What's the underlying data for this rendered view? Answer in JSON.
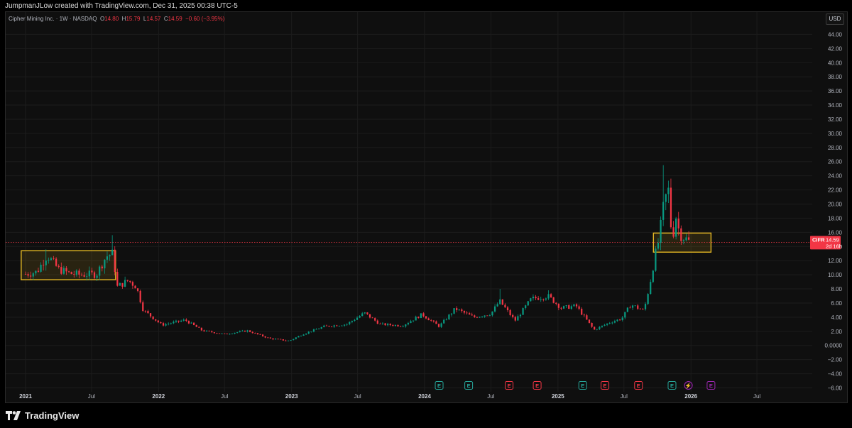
{
  "header": {
    "attribution": "JumpmanJLow created with TradingView.com, Dec 31, 2025 00:38 UTC-5"
  },
  "legend": {
    "symbol_desc": "Cipher Mining Inc. · 1W · NASDAQ",
    "o_label": "O",
    "o_value": "14.80",
    "h_label": "H",
    "h_value": "15.79",
    "l_label": "L",
    "l_value": "14.57",
    "c_label": "C",
    "c_value": "14.59",
    "change": "−0.60 (−3.95%)"
  },
  "currency": "USD",
  "price_tag": {
    "ticker": "CIFR",
    "price": "14.59",
    "countdown": "2d 16h"
  },
  "footer": {
    "brand": "TradingView"
  },
  "colors": {
    "up": "#089981",
    "down": "#f23645",
    "box": "#e5b824",
    "background": "#0f0f0f",
    "earnings_green": "#26a69a",
    "earnings_red": "#f23645",
    "dividend_purple": "#9c27b0"
  },
  "chart_data": {
    "type": "candlestick",
    "ylim": [
      -6,
      46
    ],
    "yticks": [
      "44.00",
      "42.00",
      "40.00",
      "38.00",
      "36.00",
      "34.00",
      "32.00",
      "30.00",
      "28.00",
      "26.00",
      "24.00",
      "22.00",
      "20.00",
      "18.00",
      "16.00",
      "14.00",
      "12.00",
      "10.00",
      "8.00",
      "6.00",
      "4.00",
      "2.00",
      "0.0000",
      "−2.00",
      "−4.00",
      "−6.00"
    ],
    "ytick_values": [
      44,
      42,
      40,
      38,
      36,
      34,
      32,
      30,
      28,
      26,
      24,
      22,
      20,
      18,
      16,
      14,
      12,
      10,
      8,
      6,
      4,
      2,
      0,
      -2,
      -4,
      -6
    ],
    "xticks": [
      {
        "label": "2021",
        "date": "2021-01-01",
        "bold": true
      },
      {
        "label": "Jul",
        "date": "2021-07-01",
        "bold": false
      },
      {
        "label": "2022",
        "date": "2022-01-01",
        "bold": true
      },
      {
        "label": "Jul",
        "date": "2022-07-01",
        "bold": false
      },
      {
        "label": "2023",
        "date": "2023-01-01",
        "bold": true
      },
      {
        "label": "Jul",
        "date": "2023-07-01",
        "bold": false
      },
      {
        "label": "2024",
        "date": "2024-01-01",
        "bold": true
      },
      {
        "label": "Jul",
        "date": "2024-07-01",
        "bold": false
      },
      {
        "label": "2025",
        "date": "2025-01-01",
        "bold": true
      },
      {
        "label": "Jul",
        "date": "2025-07-01",
        "bold": false
      },
      {
        "label": "2026",
        "date": "2026-01-01",
        "bold": true
      },
      {
        "label": "Jul",
        "date": "2026-07-01",
        "bold": false
      }
    ],
    "anchors": [
      {
        "date": "2021-01-01",
        "close": 10.1
      },
      {
        "date": "2021-02-01",
        "close": 10.4
      },
      {
        "date": "2021-03-01",
        "close": 12.8
      },
      {
        "date": "2021-04-01",
        "close": 10.8
      },
      {
        "date": "2021-05-01",
        "close": 10.2
      },
      {
        "date": "2021-06-01",
        "close": 10.0
      },
      {
        "date": "2021-07-15",
        "close": 10.1
      },
      {
        "date": "2021-08-10",
        "close": 12.6
      },
      {
        "date": "2021-08-28",
        "close": 13.0
      },
      {
        "date": "2021-09-10",
        "close": 8.3
      },
      {
        "date": "2021-10-10",
        "close": 9.2
      },
      {
        "date": "2021-11-01",
        "close": 8.3
      },
      {
        "date": "2021-11-20",
        "close": 5.0
      },
      {
        "date": "2022-01-10",
        "close": 2.9
      },
      {
        "date": "2022-03-15",
        "close": 3.6
      },
      {
        "date": "2022-05-01",
        "close": 2.1
      },
      {
        "date": "2022-07-01",
        "close": 1.6
      },
      {
        "date": "2022-09-01",
        "close": 2.1
      },
      {
        "date": "2022-11-01",
        "close": 1.0
      },
      {
        "date": "2022-12-25",
        "close": 0.65
      },
      {
        "date": "2023-02-01",
        "close": 1.6
      },
      {
        "date": "2023-04-01",
        "close": 2.7
      },
      {
        "date": "2023-06-01",
        "close": 3.0
      },
      {
        "date": "2023-07-20",
        "close": 4.6
      },
      {
        "date": "2023-09-01",
        "close": 3.0
      },
      {
        "date": "2023-11-01",
        "close": 2.8
      },
      {
        "date": "2023-12-25",
        "close": 4.4
      },
      {
        "date": "2024-02-10",
        "close": 2.7
      },
      {
        "date": "2024-03-25",
        "close": 5.2
      },
      {
        "date": "2024-05-15",
        "close": 4.0
      },
      {
        "date": "2024-07-01",
        "close": 4.5
      },
      {
        "date": "2024-07-25",
        "close": 6.3
      },
      {
        "date": "2024-09-05",
        "close": 3.5
      },
      {
        "date": "2024-10-20",
        "close": 6.6
      },
      {
        "date": "2024-12-05",
        "close": 7.0
      },
      {
        "date": "2025-01-10",
        "close": 5.3
      },
      {
        "date": "2025-02-20",
        "close": 5.6
      },
      {
        "date": "2025-04-10",
        "close": 2.2
      },
      {
        "date": "2025-05-25",
        "close": 3.3
      },
      {
        "date": "2025-06-25",
        "close": 3.8
      },
      {
        "date": "2025-07-20",
        "close": 5.8
      },
      {
        "date": "2025-08-25",
        "close": 4.9
      },
      {
        "date": "2025-09-10",
        "close": 8.7
      },
      {
        "date": "2025-09-25",
        "close": 12.8
      },
      {
        "date": "2025-10-05",
        "close": 15.0
      },
      {
        "date": "2025-10-20",
        "close": 20.5
      },
      {
        "date": "2025-11-01",
        "close": 22.0
      },
      {
        "date": "2025-11-10",
        "close": 14.5
      },
      {
        "date": "2025-11-20",
        "close": 18.5
      },
      {
        "date": "2025-12-01",
        "close": 15.8
      },
      {
        "date": "2025-12-15",
        "close": 15.2
      },
      {
        "date": "2025-12-29",
        "close": 14.59
      }
    ],
    "highlights": [
      {
        "start": "2020-12-20",
        "end": "2021-09-05",
        "low": 9.3,
        "high": 13.4
      },
      {
        "start": "2025-09-20",
        "end": "2026-02-25",
        "low": 13.2,
        "high": 15.9
      }
    ],
    "last_price": 14.59,
    "events": [
      {
        "date": "2024-02-10",
        "kind": "E",
        "color": "green"
      },
      {
        "date": "2024-05-01",
        "kind": "E",
        "color": "green"
      },
      {
        "date": "2024-08-20",
        "kind": "E",
        "color": "red"
      },
      {
        "date": "2024-11-05",
        "kind": "E",
        "color": "red"
      },
      {
        "date": "2025-03-10",
        "kind": "E",
        "color": "green"
      },
      {
        "date": "2025-05-10",
        "kind": "E",
        "color": "red"
      },
      {
        "date": "2025-08-10",
        "kind": "E",
        "color": "red"
      },
      {
        "date": "2025-11-10",
        "kind": "E",
        "color": "green"
      },
      {
        "date": "2025-12-25",
        "kind": "⚡",
        "color": "purple"
      },
      {
        "date": "2026-02-25",
        "kind": "E",
        "color": "purple"
      }
    ]
  }
}
